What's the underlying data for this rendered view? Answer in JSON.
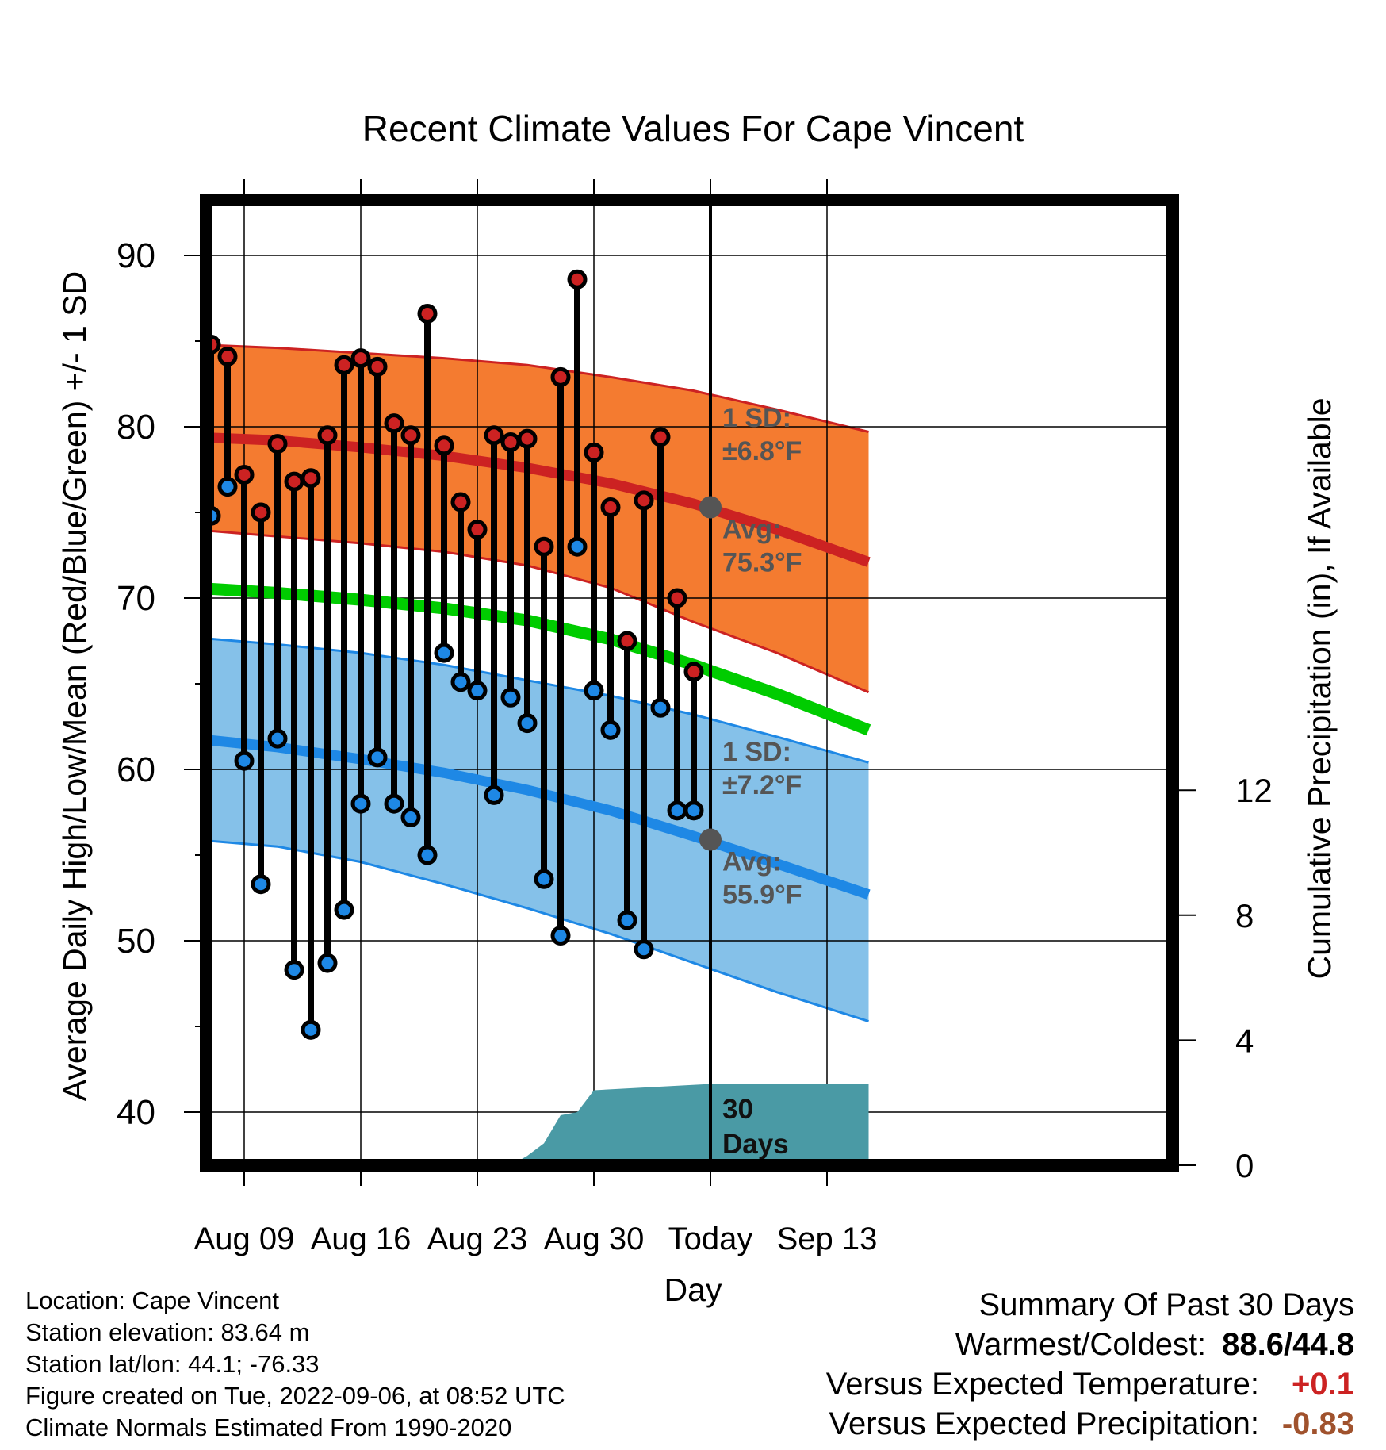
{
  "chart_data": {
    "type": "line",
    "title": "Recent Climate Values For Cape Vincent",
    "xlabel": "Day",
    "ylabel_left": "Average Daily High/Low/Mean (Red/Blue/Green) +/- 1 SD",
    "ylabel_right": "Cumulative Precipitation (in), If Available",
    "ylim_left": [
      37,
      94
    ],
    "ylim_right": [
      0,
      30
    ],
    "xlim_days": [
      0,
      40.5
    ],
    "x_ticks": [
      {
        "day": 3,
        "label": "Aug 09"
      },
      {
        "day": 10,
        "label": "Aug 16"
      },
      {
        "day": 17,
        "label": "Aug 23"
      },
      {
        "day": 24,
        "label": "Aug 30"
      },
      {
        "day": 31,
        "label": "Today"
      },
      {
        "day": 38,
        "label": "Sep 13"
      }
    ],
    "y_ticks_left": [
      {
        "value": 40,
        "label": "40"
      },
      {
        "value": 50,
        "label": "50"
      },
      {
        "value": 60,
        "label": "60"
      },
      {
        "value": 70,
        "label": "70"
      },
      {
        "value": 80,
        "label": "80"
      },
      {
        "value": 90,
        "label": "90"
      }
    ],
    "y_ticks_right": [
      {
        "value": 0,
        "label": "0"
      },
      {
        "value": 4,
        "label": "4"
      },
      {
        "value": 8,
        "label": "8"
      },
      {
        "value": 12,
        "label": "12"
      }
    ],
    "grid": true,
    "today_day": 31,
    "days": [
      1,
      2,
      3,
      4,
      5,
      6,
      7,
      8,
      9,
      10,
      11,
      12,
      13,
      14,
      15,
      16,
      17,
      18,
      19,
      20,
      21,
      22,
      23,
      24,
      25,
      26,
      27,
      28,
      29,
      30
    ],
    "observed_high": [
      84.8,
      84.1,
      77.2,
      75.0,
      79.0,
      76.8,
      77.0,
      79.5,
      83.6,
      84.0,
      83.5,
      80.2,
      79.5,
      86.6,
      78.9,
      75.6,
      74.0,
      79.5,
      79.1,
      79.3,
      73.0,
      82.9,
      88.6,
      78.5,
      75.3,
      67.5,
      75.7,
      79.4,
      70.0,
      65.7
    ],
    "observed_low": [
      74.8,
      76.5,
      60.5,
      53.3,
      61.8,
      48.3,
      44.8,
      48.7,
      51.8,
      58.0,
      60.7,
      58.0,
      57.2,
      55.0,
      66.8,
      65.1,
      64.6,
      58.5,
      64.2,
      62.7,
      53.6,
      50.3,
      73.0,
      64.6,
      62.3,
      51.2,
      49.5,
      63.6,
      57.6,
      57.6
    ],
    "normal_curve_days": [
      0,
      5,
      10,
      15,
      20,
      25,
      30,
      35,
      40.5
    ],
    "normal_high": [
      79.4,
      79.2,
      78.8,
      78.3,
      77.6,
      76.7,
      75.5,
      74.0,
      72.1
    ],
    "normal_high_upper": [
      84.8,
      84.6,
      84.3,
      84.0,
      83.6,
      82.9,
      82.1,
      81.0,
      79.7
    ],
    "normal_high_lower": [
      74.0,
      73.6,
      73.2,
      72.7,
      71.9,
      70.6,
      68.6,
      66.8,
      64.5
    ],
    "normal_mean": [
      70.6,
      70.3,
      69.9,
      69.4,
      68.7,
      67.6,
      66.1,
      64.4,
      62.3
    ],
    "normal_low": [
      61.8,
      61.3,
      60.6,
      59.8,
      58.8,
      57.6,
      56.1,
      54.5,
      52.7
    ],
    "normal_low_upper": [
      67.7,
      67.3,
      66.8,
      66.1,
      65.2,
      64.3,
      63.2,
      61.9,
      60.4
    ],
    "normal_low_lower": [
      55.9,
      55.5,
      54.6,
      53.3,
      51.9,
      50.4,
      48.7,
      47.0,
      45.3
    ],
    "precip_days": [
      4.5,
      5,
      19.5,
      20,
      21,
      22,
      23,
      24,
      31,
      40.5
    ],
    "precip_cumulative": [
      0.04,
      0.15,
      0.15,
      0.3,
      0.7,
      1.6,
      1.7,
      2.4,
      2.6,
      2.6
    ],
    "series": [
      {
        "key": "high",
        "color": "#cc2222"
      },
      {
        "key": "low",
        "color": "#1e88e5"
      },
      {
        "key": "mean",
        "color": "#00cc00"
      },
      {
        "key": "precip",
        "color": "#4a9aa5"
      }
    ],
    "annotations": {
      "high_sd_label": "1 SD:",
      "high_sd_value": "±6.8°F",
      "high_avg_label": "Avg:",
      "high_avg_value": "75.3°F",
      "low_sd_label": "1 SD:",
      "low_sd_value": "±7.2°F",
      "low_avg_label": "Avg:",
      "low_avg_value": "55.9°F",
      "days_num": "30",
      "days_word": "Days"
    }
  },
  "footer_left": [
    "Location: Cape Vincent",
    "Station elevation: 83.64 m",
    "Station lat/lon: 44.1; -76.33",
    "Figure created on Tue, 2022-09-06, at 08:52 UTC",
    "Climate Normals Estimated From 1990-2020"
  ],
  "summary": {
    "heading": "Summary Of Past 30 Days",
    "warmest_label": "Warmest/Coldest:",
    "warmest_value": "88.6/44.8",
    "temp_label": "Versus Expected Temperature:",
    "temp_value": "+0.1",
    "temp_color": "#cc2222",
    "precip_label": "Versus Expected Precipitation:",
    "precip_value": "-0.83",
    "precip_color": "#a0522d"
  }
}
